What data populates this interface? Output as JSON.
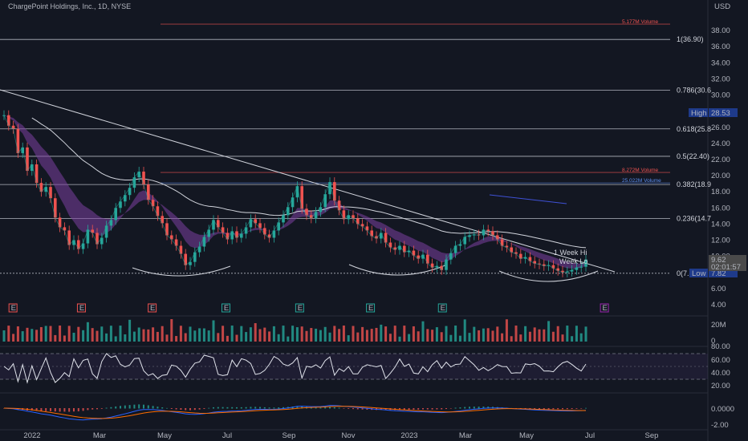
{
  "header": {
    "title": "ChargePoint Holdings, Inc., 1D, NYSE",
    "currency": "USD"
  },
  "colors": {
    "background": "#131722",
    "up": "#26a69a",
    "down": "#ef5350",
    "ema_band": "#7b3fa0",
    "grid_line": "#b2b5be",
    "macd_line": "#2962ff",
    "signal_line": "#ff6d00",
    "rsi_line": "#e0e3eb",
    "rsi_band": "#7e57c2",
    "high_label": "#1e3a8a",
    "low_label": "#1e3a8a",
    "price_label": "#4a4a4a"
  },
  "price_axis": {
    "ticks": [
      "38.00",
      "36.00",
      "34.00",
      "32.00",
      "30.00",
      "28.00",
      "26.00",
      "24.00",
      "22.00",
      "20.00",
      "18.00",
      "16.00",
      "14.00",
      "12.00",
      "10.00",
      "8.00",
      "6.00",
      "4.00"
    ],
    "high_label": "High",
    "high_value": "28.53",
    "low_label": "Low",
    "low_value": "7.82",
    "last_price": "9.62",
    "countdown": "02:01:57"
  },
  "volume_axis": {
    "ticks": [
      "20M",
      "0"
    ]
  },
  "rsi_axis": {
    "ticks": [
      "80.00",
      "60.00",
      "40.00",
      "20.00"
    ]
  },
  "macd_axis": {
    "ticks": [
      "0.0000",
      "-2.00"
    ]
  },
  "time_axis": {
    "labels": [
      "2022",
      "Mar",
      "May",
      "Jul",
      "Sep",
      "Nov",
      "2023",
      "Mar",
      "May",
      "Jul",
      "Sep"
    ]
  },
  "fib_levels": [
    {
      "label": "1(36.90)",
      "value": 36.9
    },
    {
      "label": "0.786(30.6",
      "value": 30.6
    },
    {
      "label": "0.618(25.8",
      "value": 25.8
    },
    {
      "label": "0.5(22.40)",
      "value": 22.4
    },
    {
      "label": "0.382(18.9",
      "value": 18.9
    },
    {
      "label": "0.236(14.7",
      "value": 14.7
    },
    {
      "label": "0(7.89)",
      "value": 7.89
    }
  ],
  "volume_annotations": [
    {
      "label": "5.177M Volume",
      "value": 38.8,
      "color": "#ef5350"
    },
    {
      "label": "8.272M Volume",
      "value": 20.4,
      "color": "#ef5350"
    },
    {
      "label": "25.022M Volume",
      "value": 19.1,
      "color": "#5b8def"
    }
  ],
  "week_labels": [
    "1 Week Hi",
    "Week Lo"
  ],
  "earnings_marker": "E",
  "earnings_markers": [
    {
      "x": 0.022,
      "color": "#ef5350"
    },
    {
      "x": 0.138,
      "color": "#ef5350"
    },
    {
      "x": 0.258,
      "color": "#ef5350"
    },
    {
      "x": 0.383,
      "color": "#26a69a"
    },
    {
      "x": 0.508,
      "color": "#26a69a"
    },
    {
      "x": 0.628,
      "color": "#26a69a"
    },
    {
      "x": 0.75,
      "color": "#26a69a"
    },
    {
      "x": 0.875,
      "color": "#9c27b0"
    }
  ],
  "chart_data": {
    "type": "line",
    "title": "ChargePoint Holdings, Inc., 1D, NYSE",
    "xlabel": "",
    "ylabel": "",
    "ylim": [
      3.0,
      40.0
    ],
    "series": [
      {
        "values": [
          27.5,
          26.2,
          25.8,
          22.8,
          23.5,
          20.6,
          21.4,
          19.1,
          18.0,
          18.6,
          17.2,
          14.8,
          13.6,
          13.2,
          11.4,
          12.0,
          10.9,
          11.6,
          13.3,
          12.9,
          11.5,
          12.3,
          13.8,
          14.5,
          16.0,
          16.8,
          17.6,
          18.5,
          19.8,
          20.5,
          18.9,
          17.0,
          16.2,
          15.0,
          14.1,
          12.6,
          12.1,
          11.3,
          10.3,
          8.9,
          9.3,
          10.5,
          11.2,
          12.4,
          13.3,
          14.5,
          13.6,
          12.9,
          12.1,
          13.1,
          12.3,
          12.8,
          13.6,
          14.6,
          14.1,
          13.5,
          12.7,
          12.3,
          13.2,
          14.2,
          15.1,
          16.1,
          17.3,
          18.7,
          15.9,
          15.1,
          14.7,
          15.5,
          16.1,
          17.7,
          19.2,
          16.9,
          15.7,
          14.6,
          15.1,
          14.7,
          14.0,
          13.7,
          13.2,
          12.5,
          12.2,
          12.9,
          11.7,
          11.1,
          10.8,
          11.3,
          10.5,
          10.7,
          10.1,
          9.7,
          10.2,
          9.1,
          8.6,
          8.8,
          8.3,
          9.6,
          10.4,
          11.3,
          11.5,
          12.4,
          12.6,
          12.7,
          12.6,
          13.3,
          13.1,
          12.6,
          12.1,
          11.3,
          11.1,
          10.5,
          10.3,
          9.7,
          9.9,
          9.4,
          9.1,
          9.0,
          8.8,
          8.9,
          8.5,
          8.2,
          8.0,
          8.1,
          8.3,
          8.6,
          8.7,
          9.6
        ]
      }
    ]
  }
}
